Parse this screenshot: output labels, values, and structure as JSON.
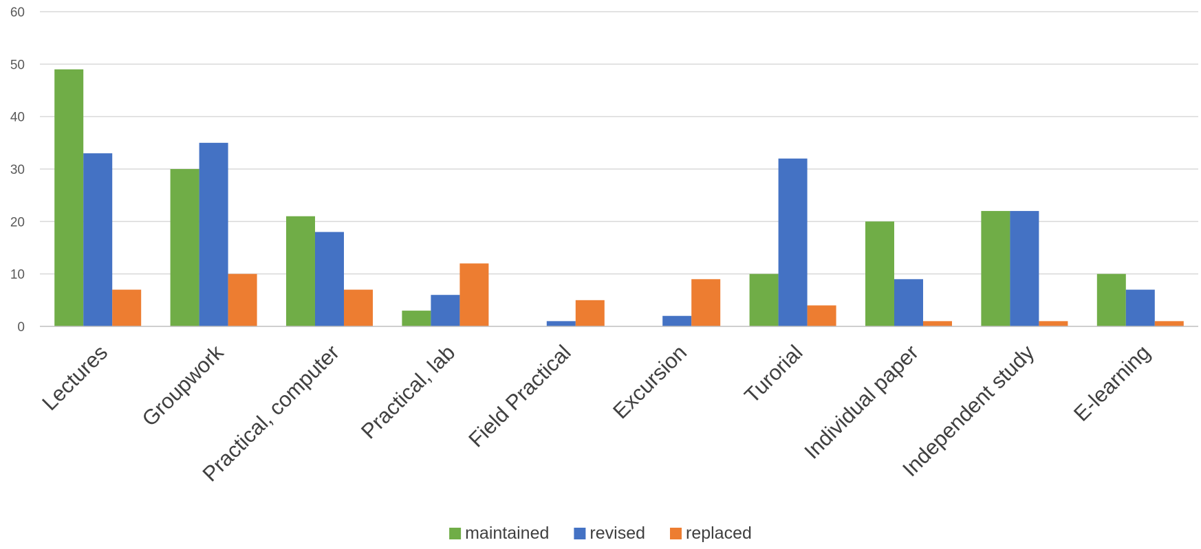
{
  "chart_data": {
    "type": "bar",
    "title": "",
    "xlabel": "",
    "ylabel": "",
    "ylim": [
      0,
      60
    ],
    "yticks": [
      "0",
      "10",
      "20",
      "30",
      "40",
      "50",
      "60"
    ],
    "grid": true,
    "legend_position": "bottom",
    "categories": [
      "Lectures",
      "Groupwork",
      "Practical, computer",
      "Practical, lab",
      "Field Practical",
      "Excursion",
      "Turorial",
      "Individual paper",
      "Independent study",
      "E-learning"
    ],
    "series": [
      {
        "name": "maintained",
        "color": "#70ad47",
        "values": [
          49,
          30,
          21,
          3,
          0,
          0,
          10,
          20,
          22,
          10
        ]
      },
      {
        "name": "revised",
        "color": "#4472c4",
        "values": [
          33,
          35,
          18,
          6,
          1,
          2,
          32,
          9,
          22,
          7
        ]
      },
      {
        "name": "replaced",
        "color": "#ed7d31",
        "values": [
          7,
          10,
          7,
          12,
          5,
          9,
          4,
          1,
          1,
          1
        ]
      }
    ]
  }
}
